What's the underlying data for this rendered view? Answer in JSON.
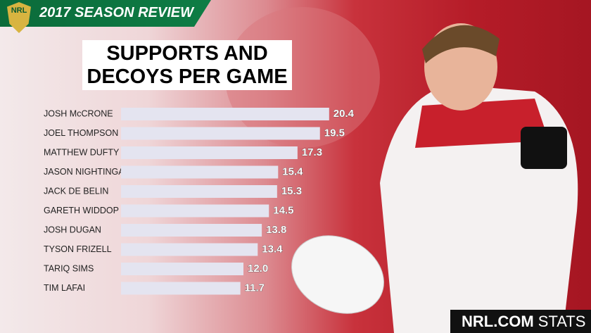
{
  "logo": "NRL",
  "header": "2017 SEASON REVIEW",
  "footer": {
    "brand": "NRL.COM",
    "suffix": "STATS"
  },
  "chart_data": {
    "type": "bar",
    "orientation": "horizontal",
    "title": "SUPPORTS AND DECOYS PER GAME",
    "categories": [
      "JOSH McCRONE",
      "JOEL THOMPSON",
      "MATTHEW DUFTY",
      "JASON NIGHTINGALE",
      "JACK DE BELIN",
      "GARETH WIDDOP",
      "JOSH DUGAN",
      "TYSON FRIZELL",
      "TARIQ SIMS",
      "TIM LAFAI"
    ],
    "values": [
      20.4,
      19.5,
      17.3,
      15.4,
      15.3,
      14.5,
      13.8,
      13.4,
      12.0,
      11.7
    ],
    "value_labels": [
      "20.4",
      "19.5",
      "17.3",
      "15.4",
      "15.3",
      "14.5",
      "13.8",
      "13.4",
      "12.0",
      "11.7"
    ],
    "color": "#e4e4f0"
  }
}
